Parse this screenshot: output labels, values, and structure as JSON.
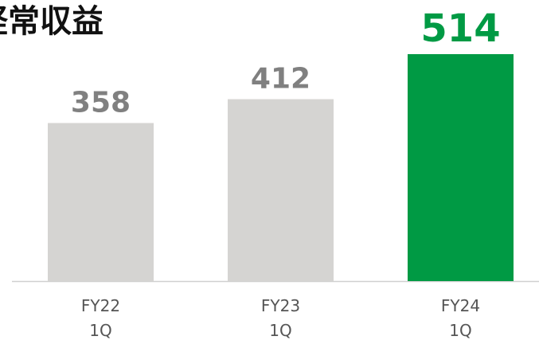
{
  "chart_data": {
    "type": "bar",
    "title": "経常収益",
    "categories": [
      "FY22\n1Q",
      "FY23\n1Q",
      "FY24\n1Q"
    ],
    "values": [
      358,
      412,
      514
    ],
    "colors": [
      "#d5d4d2",
      "#d5d4d2",
      "#009a44"
    ],
    "label_colors": [
      "#808080",
      "#808080",
      "#009a44"
    ]
  }
}
